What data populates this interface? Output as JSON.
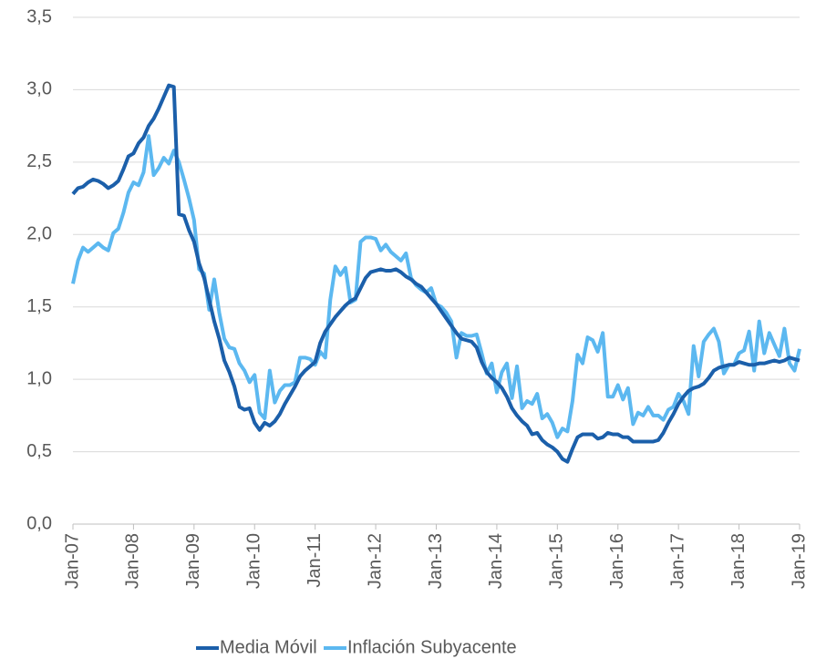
{
  "chart_data": {
    "type": "line",
    "categories": [
      "Jan-07",
      null,
      null,
      null,
      null,
      null,
      null,
      null,
      null,
      null,
      null,
      null,
      "Jan-08",
      null,
      null,
      null,
      null,
      null,
      null,
      null,
      null,
      null,
      null,
      null,
      "Jan-09",
      null,
      null,
      null,
      null,
      null,
      null,
      null,
      null,
      null,
      null,
      null,
      "Jan-10",
      null,
      null,
      null,
      null,
      null,
      null,
      null,
      null,
      null,
      null,
      null,
      "Jan-11",
      null,
      null,
      null,
      null,
      null,
      null,
      null,
      null,
      null,
      null,
      null,
      "Jan-12",
      null,
      null,
      null,
      null,
      null,
      null,
      null,
      null,
      null,
      null,
      null,
      "Jan-13",
      null,
      null,
      null,
      null,
      null,
      null,
      null,
      null,
      null,
      null,
      null,
      "Jan-14",
      null,
      null,
      null,
      null,
      null,
      null,
      null,
      null,
      null,
      null,
      null,
      "Jan-15",
      null,
      null,
      null,
      null,
      null,
      null,
      null,
      null,
      null,
      null,
      null,
      "Jan-16",
      null,
      null,
      null,
      null,
      null,
      null,
      null,
      null,
      null,
      null,
      null,
      "Jan-17",
      null,
      null,
      null,
      null,
      null,
      null,
      null,
      null,
      null,
      null,
      null,
      "Jan-18",
      null,
      null,
      null,
      null,
      null,
      null,
      null,
      null,
      null,
      null,
      null,
      "Jan-19"
    ],
    "series": [
      {
        "name": "Media Móvil",
        "color": "#1b5faa",
        "values": [
          2.28,
          2.32,
          2.33,
          2.36,
          2.38,
          2.37,
          2.35,
          2.32,
          2.34,
          2.37,
          2.45,
          2.54,
          2.56,
          2.63,
          2.67,
          2.75,
          2.8,
          2.87,
          2.95,
          3.03,
          3.02,
          2.14,
          2.13,
          2.03,
          1.95,
          1.8,
          1.7,
          1.55,
          1.4,
          1.28,
          1.13,
          1.05,
          0.95,
          0.81,
          0.79,
          0.8,
          0.7,
          0.65,
          0.7,
          0.68,
          0.71,
          0.76,
          0.83,
          0.89,
          0.95,
          1.02,
          1.06,
          1.09,
          1.12,
          1.25,
          1.33,
          1.38,
          1.43,
          1.47,
          1.51,
          1.54,
          1.56,
          1.63,
          1.7,
          1.74,
          1.75,
          1.76,
          1.75,
          1.75,
          1.76,
          1.74,
          1.71,
          1.69,
          1.66,
          1.64,
          1.6,
          1.56,
          1.52,
          1.47,
          1.42,
          1.37,
          1.32,
          1.28,
          1.27,
          1.26,
          1.22,
          1.12,
          1.05,
          1.01,
          0.98,
          0.94,
          0.88,
          0.8,
          0.75,
          0.71,
          0.68,
          0.62,
          0.63,
          0.58,
          0.55,
          0.53,
          0.5,
          0.45,
          0.43,
          0.52,
          0.6,
          0.62,
          0.62,
          0.62,
          0.59,
          0.6,
          0.63,
          0.62,
          0.62,
          0.6,
          0.6,
          0.57,
          0.57,
          0.57,
          0.57,
          0.57,
          0.58,
          0.63,
          0.7,
          0.76,
          0.83,
          0.88,
          0.92,
          0.94,
          0.95,
          0.97,
          1.01,
          1.06,
          1.08,
          1.09,
          1.1,
          1.1,
          1.12,
          1.11,
          1.1,
          1.1,
          1.11,
          1.11,
          1.12,
          1.13,
          1.12,
          1.13,
          1.15,
          1.14,
          1.13
        ]
      },
      {
        "name": "Inflación Subyacente",
        "color": "#5cb8f0",
        "values": [
          1.66,
          1.82,
          1.91,
          1.88,
          1.91,
          1.94,
          1.91,
          1.89,
          2.01,
          2.04,
          2.15,
          2.29,
          2.36,
          2.34,
          2.43,
          2.68,
          2.41,
          2.46,
          2.53,
          2.49,
          2.58,
          2.5,
          2.38,
          2.25,
          2.1,
          1.76,
          1.73,
          1.48,
          1.69,
          1.46,
          1.28,
          1.22,
          1.21,
          1.11,
          1.06,
          0.98,
          1.03,
          0.77,
          0.73,
          1.06,
          0.84,
          0.92,
          0.96,
          0.96,
          0.98,
          1.15,
          1.15,
          1.14,
          1.1,
          1.19,
          1.15,
          1.55,
          1.78,
          1.72,
          1.77,
          1.53,
          1.55,
          1.95,
          1.98,
          1.98,
          1.97,
          1.89,
          1.93,
          1.88,
          1.85,
          1.82,
          1.87,
          1.7,
          1.65,
          1.62,
          1.6,
          1.63,
          1.52,
          1.5,
          1.46,
          1.4,
          1.15,
          1.32,
          1.3,
          1.3,
          1.31,
          1.18,
          1.04,
          1.11,
          0.91,
          1.05,
          1.11,
          0.87,
          1.09,
          0.8,
          0.85,
          0.83,
          0.9,
          0.73,
          0.76,
          0.7,
          0.6,
          0.66,
          0.64,
          0.85,
          1.17,
          1.11,
          1.29,
          1.27,
          1.19,
          1.32,
          0.88,
          0.88,
          0.96,
          0.86,
          0.94,
          0.69,
          0.77,
          0.75,
          0.81,
          0.75,
          0.75,
          0.72,
          0.79,
          0.81,
          0.9,
          0.85,
          0.76,
          1.23,
          1.02,
          1.26,
          1.31,
          1.35,
          1.26,
          1.04,
          1.1,
          1.1,
          1.18,
          1.2,
          1.33,
          1.06,
          1.4,
          1.18,
          1.32,
          1.24,
          1.16,
          1.35,
          1.11,
          1.06,
          1.21
        ]
      }
    ],
    "ylim": [
      0,
      3.5
    ],
    "yticks": [
      {
        "value": 0,
        "label": "0,0"
      },
      {
        "value": 0.5,
        "label": "0,5"
      },
      {
        "value": 1,
        "label": "1,0"
      },
      {
        "value": 1.5,
        "label": "1,5"
      },
      {
        "value": 2,
        "label": "2,0"
      },
      {
        "value": 2.5,
        "label": "2,5"
      },
      {
        "value": 3,
        "label": "3,0"
      },
      {
        "value": 3.5,
        "label": "3,5"
      }
    ],
    "grid": true,
    "legend": "bottom"
  }
}
